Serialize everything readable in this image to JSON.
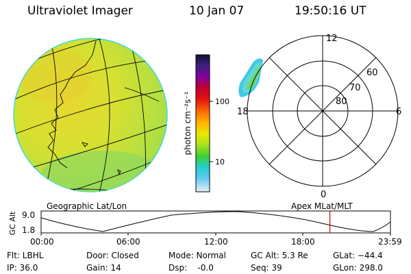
{
  "header": {
    "title": "Ultraviolet Imager",
    "date": "10 Jan 07",
    "time": "19:50:16 UT"
  },
  "colorbar": {
    "label": "photon cm⁻²s⁻¹",
    "ticks": [
      "100",
      "10"
    ],
    "colors": [
      "#002060",
      "#4020a0",
      "#800080",
      "#c00040",
      "#e00000",
      "#ff6000",
      "#ffb000",
      "#e0e000",
      "#a0e020",
      "#40d020",
      "#20d0c0",
      "#40c0f0",
      "#a0e0f0",
      "#e8f0f8"
    ]
  },
  "polar": {
    "mlt_labels": {
      "top": "12",
      "left": "18",
      "right": "6",
      "bottom": "0"
    },
    "lat_labels": [
      "60",
      "70",
      "80"
    ]
  },
  "map": {
    "caption_left": "Geographic Lat/Lon",
    "caption_right": "Apex  MLat/MLT"
  },
  "timeline": {
    "ylabel": "GC Alt",
    "ymax": "9.0",
    "ymin": "1.8",
    "xticks": [
      "00:00",
      "06:00",
      "12:00",
      "18:00",
      "23:59"
    ],
    "current_marker_hour": 19.84,
    "marker_color": "#d00000"
  },
  "info": {
    "flt": "Flt: LBHL",
    "ip": "IP: 36.0",
    "door": "Door: Closed",
    "gain": "Gain: 14",
    "mode": "Mode: Normal",
    "dsp": "Dsp:    -0.0",
    "gcalt": "GC Alt: 5.3 Re",
    "seq": "Seq: 39",
    "glat": "GLat: −44.4",
    "glon": "GLon: 298.0"
  }
}
